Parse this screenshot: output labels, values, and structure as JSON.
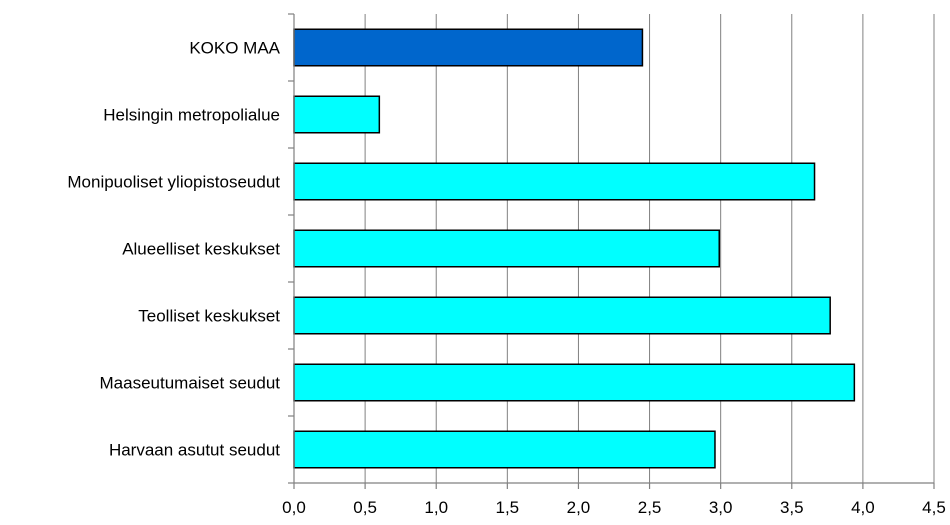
{
  "chart_data": {
    "type": "bar",
    "orientation": "horizontal",
    "categories": [
      "KOKO MAA",
      "Helsingin metropolialue",
      "Monipuoliset yliopistoseudut",
      "Alueelliset keskukset",
      "Teolliset keskukset",
      "Maaseutumaiset seudut",
      "Harvaan asutut seudut"
    ],
    "values": [
      2.45,
      0.6,
      3.66,
      2.99,
      3.77,
      3.94,
      2.96
    ],
    "highlight_category": "KOKO MAA",
    "colors": {
      "highlight": "#0066CC",
      "default": "#00FFFF",
      "grid": "#808080"
    },
    "xlim": [
      0,
      4.5
    ],
    "xticks": [
      "0,0",
      "0,5",
      "1,0",
      "1,5",
      "2,0",
      "2,5",
      "3,0",
      "3,5",
      "4,0",
      "4,5"
    ],
    "grid": "vertical",
    "legend": "none",
    "title": "",
    "xlabel": "",
    "ylabel": ""
  }
}
